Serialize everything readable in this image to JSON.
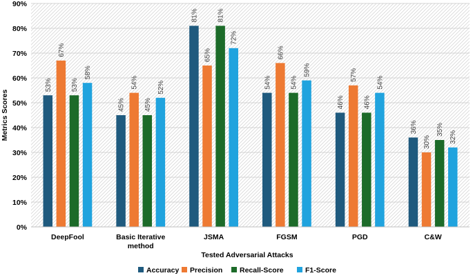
{
  "chart_data": {
    "type": "bar",
    "title": "",
    "xlabel": "Tested Adversarial Attacks",
    "ylabel": "Metrics Scores",
    "ylim": [
      0,
      90
    ],
    "y_tick_values": [
      0,
      10,
      20,
      30,
      40,
      50,
      60,
      70,
      80,
      90
    ],
    "y_tick_labels": [
      "0%",
      "10%",
      "20%",
      "30%",
      "40%",
      "50%",
      "60%",
      "70%",
      "80%",
      "90%"
    ],
    "grid": true,
    "legend_position": "bottom",
    "categories": [
      [
        "DeepFool"
      ],
      [
        "Basic Iterative",
        "method"
      ],
      [
        "JSMA"
      ],
      [
        "FGSM"
      ],
      [
        "PGD"
      ],
      [
        "C&W"
      ]
    ],
    "series": [
      {
        "name": "Accuracy",
        "color": "#1f5a7e",
        "values": [
          53,
          45,
          81,
          54,
          46,
          36
        ],
        "labels": [
          "53%",
          "45%",
          "81%",
          "54%",
          "46%",
          "36%"
        ]
      },
      {
        "name": "Precision",
        "color": "#ee7a33",
        "values": [
          67,
          54,
          65,
          66,
          57,
          30
        ],
        "labels": [
          "67%",
          "54%",
          "65%",
          "66%",
          "57%",
          "30%"
        ]
      },
      {
        "name": "Recall-Score",
        "color": "#1c6b29",
        "values": [
          53,
          45,
          81,
          54,
          46,
          35
        ],
        "labels": [
          "53%",
          "45%",
          "81%",
          "54%",
          "46%",
          "35%"
        ]
      },
      {
        "name": "F1-Score",
        "color": "#20a3de",
        "values": [
          58,
          52,
          72,
          59,
          54,
          32
        ],
        "labels": [
          "58%",
          "52%",
          "72%",
          "59%",
          "54%",
          "32%"
        ]
      }
    ]
  }
}
